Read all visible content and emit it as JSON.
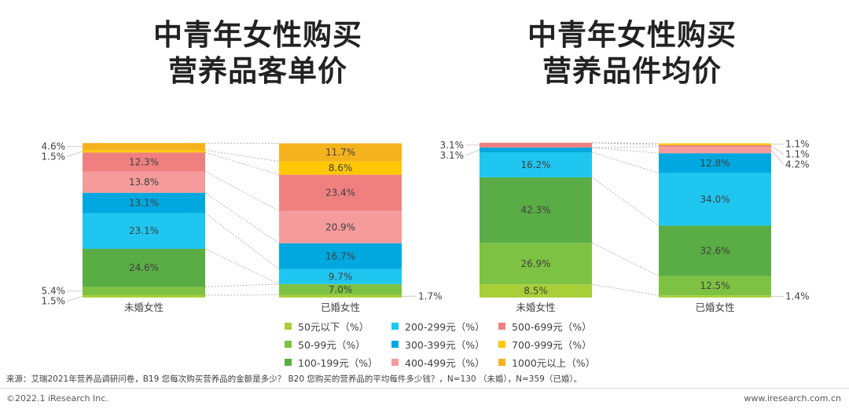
{
  "chart_data": [
    {
      "type": "stacked-bar",
      "title": "中青年女性购买营养品客单价",
      "title_lines": [
        "中青年女性购买",
        "营养品客单价"
      ],
      "categories": [
        "未婚女性",
        "已婚女性"
      ],
      "ylim": [
        0,
        100
      ],
      "series": [
        {
          "name": "50元以下（%）",
          "values": [
            1.5,
            1.7
          ]
        },
        {
          "name": "50-99元（%）",
          "values": [
            5.4,
            7.0
          ]
        },
        {
          "name": "100-199元（%）",
          "values": [
            24.6,
            0.0
          ]
        },
        {
          "name": "200-299元（%）",
          "values": [
            23.1,
            9.7
          ]
        },
        {
          "name": "300-399元（%）",
          "values": [
            13.1,
            16.7
          ]
        },
        {
          "name": "400-499元（%）",
          "values": [
            13.8,
            20.9
          ]
        },
        {
          "name": "500-699元（%）",
          "values": [
            12.3,
            23.4
          ]
        },
        {
          "name": "700-999元（%）",
          "values": [
            1.5,
            8.6
          ]
        },
        {
          "name": "1000元以上（%）",
          "values": [
            4.6,
            11.7
          ]
        }
      ]
    },
    {
      "type": "stacked-bar",
      "title": "中青年女性购买营养品件均价",
      "title_lines": [
        "中青年女性购买",
        "营养品件均价"
      ],
      "categories": [
        "未婚女性",
        "已婚女性"
      ],
      "ylim": [
        0,
        100
      ],
      "series": [
        {
          "name": "50元以下（%）",
          "values": [
            8.5,
            1.4
          ]
        },
        {
          "name": "50-99元（%）",
          "values": [
            26.9,
            12.5
          ]
        },
        {
          "name": "100-199元（%）",
          "values": [
            42.3,
            32.6
          ]
        },
        {
          "name": "200-299元（%）",
          "values": [
            16.2,
            34.0
          ]
        },
        {
          "name": "300-399元（%）",
          "values": [
            3.1,
            12.8
          ]
        },
        {
          "name": "400-499元（%）",
          "values": [
            0.0,
            4.2
          ]
        },
        {
          "name": "500-699元（%）",
          "values": [
            3.1,
            1.1
          ]
        },
        {
          "name": "700-999元（%）",
          "values": [
            0.0,
            1.1
          ]
        },
        {
          "name": "1000元以上（%）",
          "values": [
            0.0,
            0.0
          ]
        }
      ]
    }
  ],
  "series_colors": [
    "#a8cf37",
    "#7dc242",
    "#5aac44",
    "#1ec6f0",
    "#00a8e0",
    "#f59b9b",
    "#f08080",
    "#ffc800",
    "#f5b21f"
  ],
  "legend": {
    "items": [
      "50元以下（%）",
      "50-99元（%）",
      "100-199元（%）",
      "200-299元（%）",
      "300-399元（%）",
      "400-499元（%）",
      "500-699元（%）",
      "700-999元（%）",
      "1000元以上（%）"
    ]
  },
  "source": "来源：艾瑞2021年营养品调研问卷，B19 您每次购买营养品的金额是多少？ B20 您购买的营养品的平均每件多少钱？，N=130 （未婚），N=359（已婚）。",
  "footer": {
    "copyright": "©2022.1 iResearch Inc.",
    "website": "www.iresearch.com.cn"
  }
}
